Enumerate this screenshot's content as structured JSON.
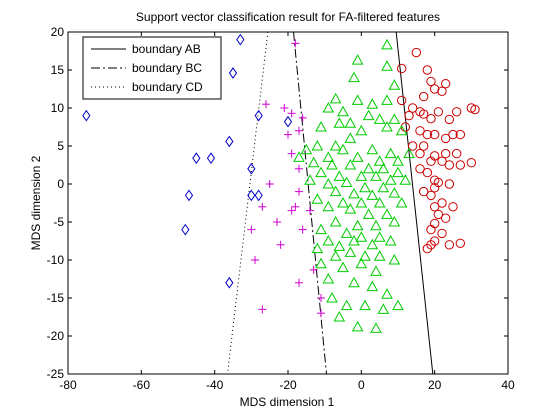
{
  "chart_data": {
    "type": "scatter",
    "title": "Support vector classification result for FA-filtered features",
    "xlabel": "MDS dimension 1",
    "ylabel": "MDS dimension 2",
    "xlim": [
      -80,
      40
    ],
    "ylim": [
      -25,
      20
    ],
    "xticks": [
      -80,
      -60,
      -40,
      -20,
      0,
      20,
      40
    ],
    "yticks": [
      -25,
      -20,
      -15,
      -10,
      -5,
      0,
      5,
      10,
      15,
      20
    ],
    "grid": false,
    "legend_position": "top-left",
    "legend": [
      {
        "label": "boundary AB",
        "style": "solid"
      },
      {
        "label": "boundary BC",
        "style": "dashdot"
      },
      {
        "label": "boundary CD",
        "style": "dotted"
      }
    ],
    "boundaries": [
      {
        "name": "boundary AB",
        "style": "solid",
        "points": [
          [
            9.5,
            20
          ],
          [
            19.5,
            -25
          ]
        ]
      },
      {
        "name": "boundary BC",
        "style": "dashdot",
        "points": [
          [
            -18.5,
            20
          ],
          [
            -9.5,
            -25
          ]
        ]
      },
      {
        "name": "boundary CD",
        "style": "dotted",
        "points": [
          [
            -25.5,
            20
          ],
          [
            -36.5,
            -25
          ]
        ]
      }
    ],
    "series": [
      {
        "marker": "circle",
        "color": "#cc0000",
        "points": [
          [
            15,
            17.3
          ],
          [
            11,
            15.2
          ],
          [
            18,
            15
          ],
          [
            19,
            13.5
          ],
          [
            20,
            12.5
          ],
          [
            22,
            12.2
          ],
          [
            23,
            13.2
          ],
          [
            17,
            11.5
          ],
          [
            11,
            11
          ],
          [
            13,
            9
          ],
          [
            14,
            10
          ],
          [
            16,
            9.5
          ],
          [
            17,
            9.2
          ],
          [
            19,
            8.6
          ],
          [
            21,
            9.5
          ],
          [
            24,
            8.5
          ],
          [
            26,
            9.5
          ],
          [
            30,
            10
          ],
          [
            31,
            9.8
          ],
          [
            12,
            7.5
          ],
          [
            16,
            7
          ],
          [
            18,
            6.5
          ],
          [
            20,
            6.5
          ],
          [
            23,
            6
          ],
          [
            25,
            6.5
          ],
          [
            27,
            6.5
          ],
          [
            14,
            5
          ],
          [
            17,
            5
          ],
          [
            16,
            4
          ],
          [
            20,
            3.7
          ],
          [
            23,
            4
          ],
          [
            26,
            4
          ],
          [
            19,
            3
          ],
          [
            22,
            3
          ],
          [
            24,
            2.5
          ],
          [
            27,
            2.5
          ],
          [
            30,
            2.8
          ],
          [
            16,
            2
          ],
          [
            18,
            1.5
          ],
          [
            20,
            0.5
          ],
          [
            21,
            0.2
          ],
          [
            24,
            0
          ],
          [
            20,
            -0.5
          ],
          [
            17,
            -1
          ],
          [
            19,
            -1.5
          ],
          [
            22,
            -2.5
          ],
          [
            20,
            -3
          ],
          [
            25,
            -3
          ],
          [
            21,
            -4
          ],
          [
            23,
            -4.5
          ],
          [
            20,
            -5.2
          ],
          [
            19,
            -6
          ],
          [
            22,
            -6.5
          ],
          [
            20,
            -7.5
          ],
          [
            19,
            -8
          ],
          [
            27,
            -7.8
          ],
          [
            24,
            -8
          ],
          [
            18,
            -8.5
          ]
        ]
      },
      {
        "marker": "triangle",
        "color": "#00cc00",
        "points": [
          [
            7,
            18.3
          ],
          [
            -1,
            16.3
          ],
          [
            7,
            15.5
          ],
          [
            -2,
            14
          ],
          [
            9,
            13
          ],
          [
            -7,
            11.2
          ],
          [
            3,
            10.5
          ],
          [
            7,
            11
          ],
          [
            -1,
            11
          ],
          [
            -5,
            9.5
          ],
          [
            -9,
            10
          ],
          [
            2,
            9
          ],
          [
            5,
            8.5
          ],
          [
            9,
            8.5
          ],
          [
            -3,
            8
          ],
          [
            -6,
            8
          ],
          [
            -11,
            7.5
          ],
          [
            0,
            7
          ],
          [
            7,
            7.5
          ],
          [
            11,
            7
          ],
          [
            -3,
            6
          ],
          [
            -7,
            5
          ],
          [
            -12,
            5
          ],
          [
            -15,
            4.5
          ],
          [
            3,
            4.5
          ],
          [
            8,
            4
          ],
          [
            13,
            4
          ],
          [
            -5,
            4.5
          ],
          [
            -9,
            3.5
          ],
          [
            -1,
            3.5
          ],
          [
            -17,
            3.5
          ],
          [
            5,
            3
          ],
          [
            10,
            3
          ],
          [
            -13,
            2.8
          ],
          [
            -8,
            2.5
          ],
          [
            -3,
            2.5
          ],
          [
            2,
            2
          ],
          [
            6,
            2
          ],
          [
            10,
            1.5
          ],
          [
            -11,
            1.5
          ],
          [
            -6,
            1
          ],
          [
            0,
            1
          ],
          [
            4,
            1
          ],
          [
            8,
            0.5
          ],
          [
            12,
            0.5
          ],
          [
            -14,
            0.5
          ],
          [
            -9,
            0
          ],
          [
            -4,
            0.2
          ],
          [
            1,
            -0.5
          ],
          [
            6,
            -0.5
          ],
          [
            -7,
            -1
          ],
          [
            -2,
            -1.3
          ],
          [
            3,
            -1.5
          ],
          [
            9,
            -1.2
          ],
          [
            -12,
            -2
          ],
          [
            -5,
            -2.5
          ],
          [
            0,
            -2.5
          ],
          [
            5,
            -2.5
          ],
          [
            11,
            -2.5
          ],
          [
            -9,
            -3
          ],
          [
            -3,
            -3.3
          ],
          [
            2,
            -4
          ],
          [
            7,
            -4
          ],
          [
            -7,
            -5
          ],
          [
            -1,
            -5.5
          ],
          [
            4,
            -5.5
          ],
          [
            9,
            -5
          ],
          [
            -11,
            -6
          ],
          [
            -4,
            -6.5
          ],
          [
            0,
            -7
          ],
          [
            5,
            -7
          ],
          [
            -9,
            -7.5
          ],
          [
            -2,
            -7.5
          ],
          [
            3,
            -8
          ],
          [
            8,
            -7.5
          ],
          [
            -6,
            -8.2
          ],
          [
            -12,
            -8.5
          ],
          [
            -7,
            -9.5
          ],
          [
            -3,
            -9
          ],
          [
            1,
            -9.5
          ],
          [
            5,
            -9.5
          ],
          [
            9,
            -10
          ],
          [
            -11,
            -10.5
          ],
          [
            -5,
            -11
          ],
          [
            0,
            -10.5
          ],
          [
            4,
            -11.5
          ],
          [
            -9,
            -12.5
          ],
          [
            -2,
            -13
          ],
          [
            3,
            -13.5
          ],
          [
            7,
            -14.5
          ],
          [
            -8,
            -15
          ],
          [
            -4,
            -16
          ],
          [
            1,
            -16
          ],
          [
            6,
            -16.5
          ],
          [
            10,
            -16
          ],
          [
            -6,
            -17.5
          ],
          [
            -1,
            -18.8
          ],
          [
            4,
            -19
          ]
        ]
      },
      {
        "marker": "plus",
        "color": "#cc00cc",
        "points": [
          [
            -18,
            18.5
          ],
          [
            -26,
            10.5
          ],
          [
            -21,
            10
          ],
          [
            -19,
            9.3
          ],
          [
            -16,
            8.7
          ],
          [
            -17,
            7
          ],
          [
            -20,
            6.5
          ],
          [
            -19,
            4
          ],
          [
            -17,
            2
          ],
          [
            -25,
            0
          ],
          [
            -17,
            -1
          ],
          [
            -18,
            -3
          ],
          [
            -19,
            -3.5
          ],
          [
            -27,
            -3
          ],
          [
            -14,
            -3.5
          ],
          [
            -23,
            -5
          ],
          [
            -30,
            -6
          ],
          [
            -16,
            -6
          ],
          [
            -22,
            -8
          ],
          [
            -29,
            -10
          ],
          [
            -13,
            -11.3
          ],
          [
            -17,
            -13
          ],
          [
            -11,
            -15
          ],
          [
            -27,
            -16.5
          ],
          [
            -11,
            -17
          ]
        ]
      },
      {
        "marker": "diamond",
        "color": "#0000cc",
        "points": [
          [
            -33,
            19
          ],
          [
            -35,
            14.6
          ],
          [
            -75,
            9
          ],
          [
            -28,
            9
          ],
          [
            -20,
            8.2
          ],
          [
            -36,
            5.6
          ],
          [
            -45,
            3.4
          ],
          [
            -41,
            3.4
          ],
          [
            -30,
            2
          ],
          [
            -47,
            -1.5
          ],
          [
            -30,
            -1.5
          ],
          [
            -28,
            -1.5
          ],
          [
            -48,
            -6
          ],
          [
            -36,
            -13
          ]
        ]
      }
    ]
  }
}
